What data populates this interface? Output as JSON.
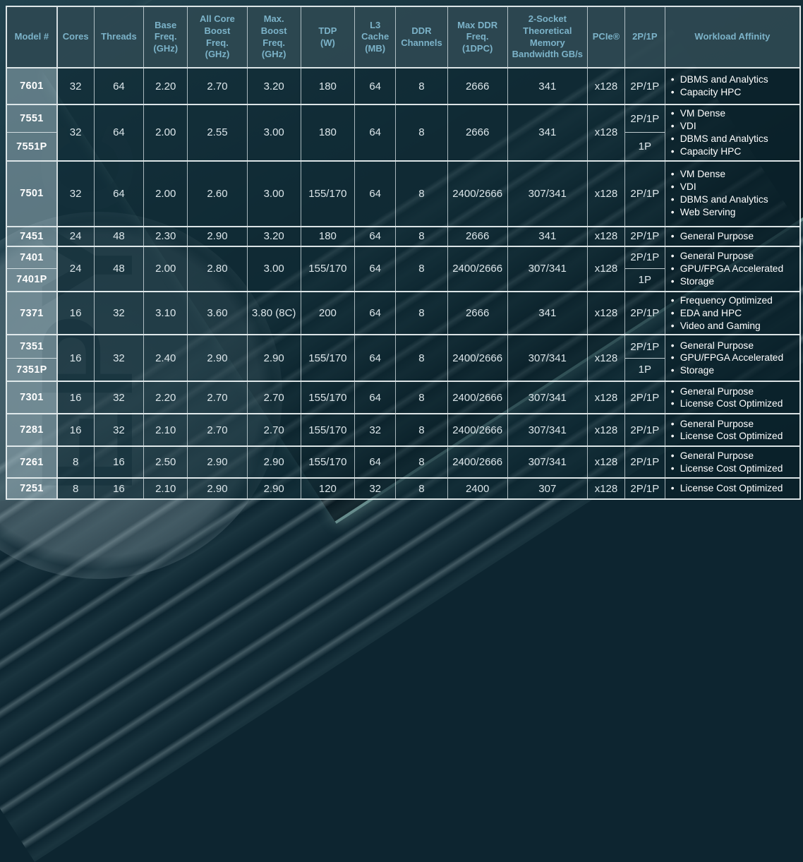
{
  "background": {
    "watermark": "EPYC"
  },
  "table": {
    "columns": [
      {
        "key": "model",
        "label": "Model #"
      },
      {
        "key": "cores",
        "label": "Cores"
      },
      {
        "key": "threads",
        "label": "Threads"
      },
      {
        "key": "base_freq",
        "label": "Base\nFreq.\n(GHz)"
      },
      {
        "key": "all_core_boost",
        "label": "All Core\nBoost\nFreq.\n(GHz)"
      },
      {
        "key": "max_boost",
        "label": "Max.\nBoost\nFreq.\n(GHz)"
      },
      {
        "key": "tdp",
        "label": "TDP\n(W)"
      },
      {
        "key": "l3_cache",
        "label": "L3\nCache\n(MB)"
      },
      {
        "key": "ddr_channels",
        "label": "DDR\nChannels"
      },
      {
        "key": "max_ddr_freq",
        "label": "Max DDR\nFreq.\n(1DPC)"
      },
      {
        "key": "memory_bandwidth",
        "label": "2-Socket\nTheoretical\nMemory\nBandwidth GB/s"
      },
      {
        "key": "pcie",
        "label": "PCIe®"
      },
      {
        "key": "sockets",
        "label": "2P/1P"
      },
      {
        "key": "workload",
        "label": "Workload Affinity"
      }
    ],
    "groups": [
      {
        "models": [
          "7601"
        ],
        "cores": "32",
        "threads": "64",
        "base_freq": "2.20",
        "all_core_boost": "2.70",
        "max_boost": "3.20",
        "tdp": "180",
        "l3_cache": "64",
        "ddr_channels": "8",
        "max_ddr_freq": "2666",
        "memory_bandwidth": "341",
        "pcie": "x128",
        "sockets": [
          "2P/1P"
        ],
        "workloads": [
          "DBMS and Analytics",
          "Capacity HPC"
        ]
      },
      {
        "models": [
          "7551",
          "7551P"
        ],
        "cores": "32",
        "threads": "64",
        "base_freq": "2.00",
        "all_core_boost": "2.55",
        "max_boost": "3.00",
        "tdp": "180",
        "l3_cache": "64",
        "ddr_channels": "8",
        "max_ddr_freq": "2666",
        "memory_bandwidth": "341",
        "pcie": "x128",
        "sockets": [
          "2P/1P",
          "1P"
        ],
        "workloads": [
          "VM Dense",
          "VDI",
          "DBMS and Analytics",
          "Capacity HPC"
        ]
      },
      {
        "models": [
          "7501"
        ],
        "cores": "32",
        "threads": "64",
        "base_freq": "2.00",
        "all_core_boost": "2.60",
        "max_boost": "3.00",
        "tdp": "155/170",
        "l3_cache": "64",
        "ddr_channels": "8",
        "max_ddr_freq": "2400/2666",
        "memory_bandwidth": "307/341",
        "pcie": "x128",
        "sockets": [
          "2P/1P"
        ],
        "workloads": [
          "VM Dense",
          "VDI",
          "DBMS and Analytics",
          "Web Serving"
        ]
      },
      {
        "models": [
          "7451"
        ],
        "cores": "24",
        "threads": "48",
        "base_freq": "2.30",
        "all_core_boost": "2.90",
        "max_boost": "3.20",
        "tdp": "180",
        "l3_cache": "64",
        "ddr_channels": "8",
        "max_ddr_freq": "2666",
        "memory_bandwidth": "341",
        "pcie": "x128",
        "sockets": [
          "2P/1P"
        ],
        "workloads": [
          "General Purpose"
        ]
      },
      {
        "models": [
          "7401",
          "7401P"
        ],
        "cores": "24",
        "threads": "48",
        "base_freq": "2.00",
        "all_core_boost": "2.80",
        "max_boost": "3.00",
        "tdp": "155/170",
        "l3_cache": "64",
        "ddr_channels": "8",
        "max_ddr_freq": "2400/2666",
        "memory_bandwidth": "307/341",
        "pcie": "x128",
        "sockets": [
          "2P/1P",
          "1P"
        ],
        "workloads": [
          "General Purpose",
          "GPU/FPGA Accelerated",
          "Storage"
        ]
      },
      {
        "models": [
          "7371"
        ],
        "cores": "16",
        "threads": "32",
        "base_freq": "3.10",
        "all_core_boost": "3.60",
        "max_boost": "3.80 (8C)",
        "tdp": "200",
        "l3_cache": "64",
        "ddr_channels": "8",
        "max_ddr_freq": "2666",
        "memory_bandwidth": "341",
        "pcie": "x128",
        "sockets": [
          "2P/1P"
        ],
        "workloads": [
          "Frequency Optimized",
          "EDA and HPC",
          "Video and Gaming"
        ]
      },
      {
        "models": [
          "7351",
          "7351P"
        ],
        "cores": "16",
        "threads": "32",
        "base_freq": "2.40",
        "all_core_boost": "2.90",
        "max_boost": "2.90",
        "tdp": "155/170",
        "l3_cache": "64",
        "ddr_channels": "8",
        "max_ddr_freq": "2400/2666",
        "memory_bandwidth": "307/341",
        "pcie": "x128",
        "sockets": [
          "2P/1P",
          "1P"
        ],
        "workloads": [
          "General Purpose",
          "GPU/FPGA Accelerated",
          "Storage"
        ]
      },
      {
        "models": [
          "7301"
        ],
        "cores": "16",
        "threads": "32",
        "base_freq": "2.20",
        "all_core_boost": "2.70",
        "max_boost": "2.70",
        "tdp": "155/170",
        "l3_cache": "64",
        "ddr_channels": "8",
        "max_ddr_freq": "2400/2666",
        "memory_bandwidth": "307/341",
        "pcie": "x128",
        "sockets": [
          "2P/1P"
        ],
        "workloads": [
          "General Purpose",
          "License Cost Optimized"
        ]
      },
      {
        "models": [
          "7281"
        ],
        "cores": "16",
        "threads": "32",
        "base_freq": "2.10",
        "all_core_boost": "2.70",
        "max_boost": "2.70",
        "tdp": "155/170",
        "l3_cache": "32",
        "ddr_channels": "8",
        "max_ddr_freq": "2400/2666",
        "memory_bandwidth": "307/341",
        "pcie": "x128",
        "sockets": [
          "2P/1P"
        ],
        "workloads": [
          "General Purpose",
          "License Cost Optimized"
        ]
      },
      {
        "models": [
          "7261"
        ],
        "cores": "8",
        "threads": "16",
        "base_freq": "2.50",
        "all_core_boost": "2.90",
        "max_boost": "2.90",
        "tdp": "155/170",
        "l3_cache": "64",
        "ddr_channels": "8",
        "max_ddr_freq": "2400/2666",
        "memory_bandwidth": "307/341",
        "pcie": "x128",
        "sockets": [
          "2P/1P"
        ],
        "workloads": [
          "General Purpose",
          "License Cost Optimized"
        ]
      },
      {
        "models": [
          "7251"
        ],
        "cores": "8",
        "threads": "16",
        "base_freq": "2.10",
        "all_core_boost": "2.90",
        "max_boost": "2.90",
        "tdp": "120",
        "l3_cache": "32",
        "ddr_channels": "8",
        "max_ddr_freq": "2400",
        "memory_bandwidth": "307",
        "pcie": "x128",
        "sockets": [
          "2P/1P"
        ],
        "workloads": [
          "License Cost Optimized"
        ]
      }
    ]
  }
}
